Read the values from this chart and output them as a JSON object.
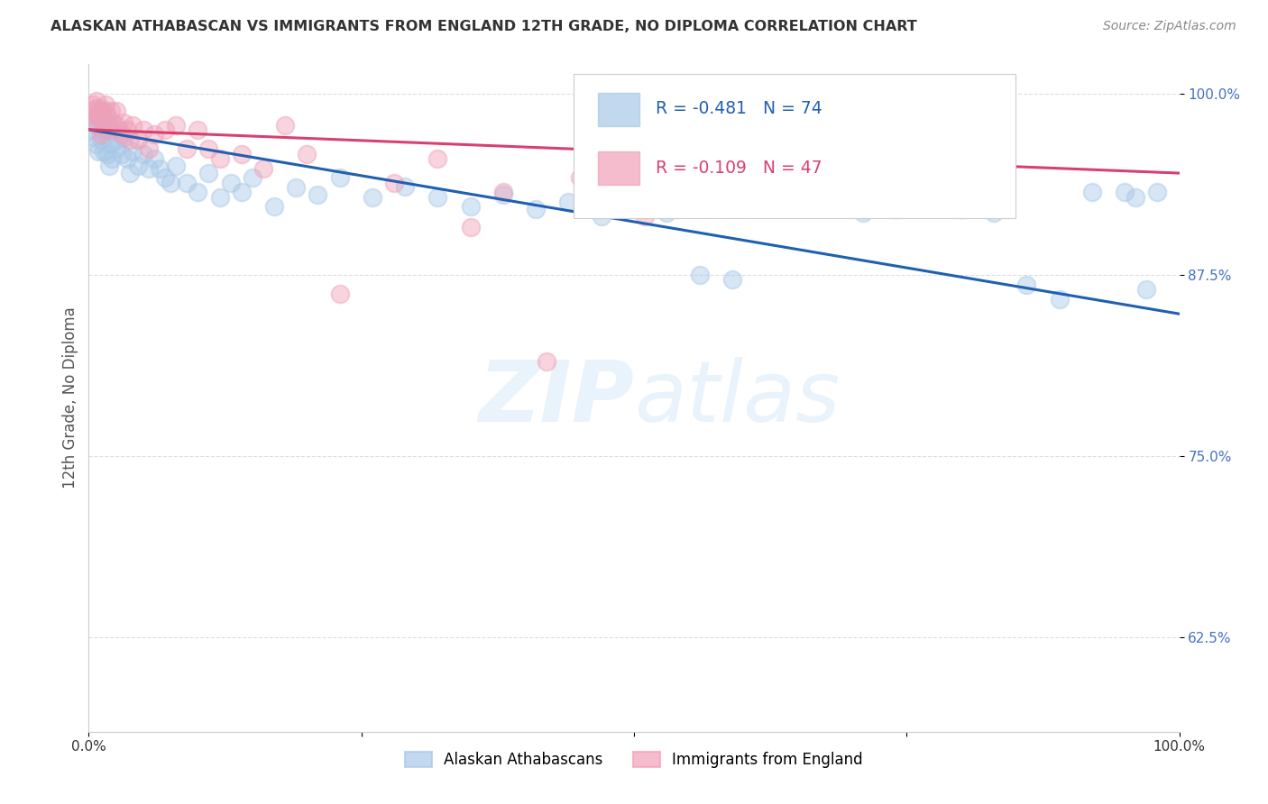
{
  "title": "ALASKAN ATHABASCAN VS IMMIGRANTS FROM ENGLAND 12TH GRADE, NO DIPLOMA CORRELATION CHART",
  "source": "Source: ZipAtlas.com",
  "ylabel": "12th Grade, No Diploma",
  "legend_entries": [
    {
      "label": "R = -0.481   N = 74",
      "color": "#a8c4e0"
    },
    {
      "label": "R = -0.109   N = 47",
      "color": "#f4b8c8"
    }
  ],
  "legend_names": [
    "Alaskan Athabascans",
    "Immigrants from England"
  ],
  "blue_scatter_x": [
    0.003,
    0.005,
    0.006,
    0.007,
    0.008,
    0.009,
    0.01,
    0.01,
    0.011,
    0.012,
    0.013,
    0.014,
    0.015,
    0.016,
    0.017,
    0.018,
    0.019,
    0.02,
    0.021,
    0.022,
    0.025,
    0.025,
    0.027,
    0.03,
    0.032,
    0.035,
    0.038,
    0.04,
    0.045,
    0.05,
    0.055,
    0.06,
    0.065,
    0.07,
    0.075,
    0.08,
    0.09,
    0.1,
    0.11,
    0.12,
    0.13,
    0.14,
    0.15,
    0.17,
    0.19,
    0.21,
    0.23,
    0.26,
    0.29,
    0.32,
    0.35,
    0.38,
    0.41,
    0.44,
    0.47,
    0.5,
    0.53,
    0.56,
    0.59,
    0.62,
    0.65,
    0.68,
    0.71,
    0.74,
    0.77,
    0.8,
    0.83,
    0.86,
    0.89,
    0.92,
    0.95,
    0.96,
    0.97,
    0.98
  ],
  "blue_scatter_y": [
    0.975,
    0.97,
    0.98,
    0.965,
    0.985,
    0.96,
    0.99,
    0.978,
    0.968,
    0.982,
    0.975,
    0.96,
    0.988,
    0.972,
    0.958,
    0.978,
    0.95,
    0.965,
    0.955,
    0.975,
    0.962,
    0.978,
    0.968,
    0.958,
    0.97,
    0.955,
    0.945,
    0.96,
    0.95,
    0.958,
    0.948,
    0.955,
    0.948,
    0.942,
    0.938,
    0.95,
    0.938,
    0.932,
    0.945,
    0.928,
    0.938,
    0.932,
    0.942,
    0.922,
    0.935,
    0.93,
    0.942,
    0.928,
    0.936,
    0.928,
    0.922,
    0.93,
    0.92,
    0.925,
    0.915,
    0.93,
    0.918,
    0.875,
    0.872,
    0.928,
    0.928,
    0.922,
    0.918,
    0.92,
    0.932,
    0.92,
    0.918,
    0.868,
    0.858,
    0.932,
    0.932,
    0.928,
    0.865,
    0.932
  ],
  "pink_scatter_x": [
    0.003,
    0.004,
    0.005,
    0.006,
    0.007,
    0.008,
    0.009,
    0.01,
    0.011,
    0.012,
    0.013,
    0.015,
    0.017,
    0.018,
    0.02,
    0.022,
    0.025,
    0.028,
    0.03,
    0.032,
    0.035,
    0.038,
    0.04,
    0.045,
    0.05,
    0.055,
    0.06,
    0.07,
    0.08,
    0.09,
    0.1,
    0.11,
    0.12,
    0.14,
    0.16,
    0.18,
    0.2,
    0.23,
    0.28,
    0.32,
    0.35,
    0.38,
    0.42,
    0.45,
    0.48,
    0.51,
    0.54
  ],
  "pink_scatter_y": [
    0.988,
    0.992,
    0.985,
    0.99,
    0.995,
    0.978,
    0.985,
    0.988,
    0.972,
    0.988,
    0.98,
    0.992,
    0.985,
    0.975,
    0.988,
    0.98,
    0.988,
    0.975,
    0.972,
    0.98,
    0.975,
    0.968,
    0.978,
    0.968,
    0.975,
    0.962,
    0.972,
    0.975,
    0.978,
    0.962,
    0.975,
    0.962,
    0.955,
    0.958,
    0.948,
    0.978,
    0.958,
    0.862,
    0.938,
    0.955,
    0.908,
    0.932,
    0.815,
    0.942,
    0.95,
    0.915,
    0.945
  ],
  "blue_line_y_start": 0.975,
  "blue_line_y_end": 0.848,
  "pink_line_y_start": 0.975,
  "pink_line_y_end": 0.945,
  "scatter_size": 200,
  "scatter_alpha": 0.45,
  "scatter_lw": 1.5,
  "line_width": 2.2,
  "bg_color": "#ffffff",
  "grid_color": "#dddddd",
  "blue_color": "#a8c8e8",
  "pink_color": "#f0a0b8",
  "blue_line_color": "#2060b0",
  "pink_line_color": "#d84070",
  "xlim": [
    0.0,
    1.0
  ],
  "ylim": [
    0.56,
    1.02
  ],
  "yticks": [
    1.0,
    0.875,
    0.75,
    0.625
  ],
  "xticks": [
    0.0,
    0.25,
    0.5,
    0.75,
    1.0
  ],
  "watermark_text": "ZIPatlas",
  "watermark_zip": "ZIP",
  "watermark_atlas": "atlas"
}
